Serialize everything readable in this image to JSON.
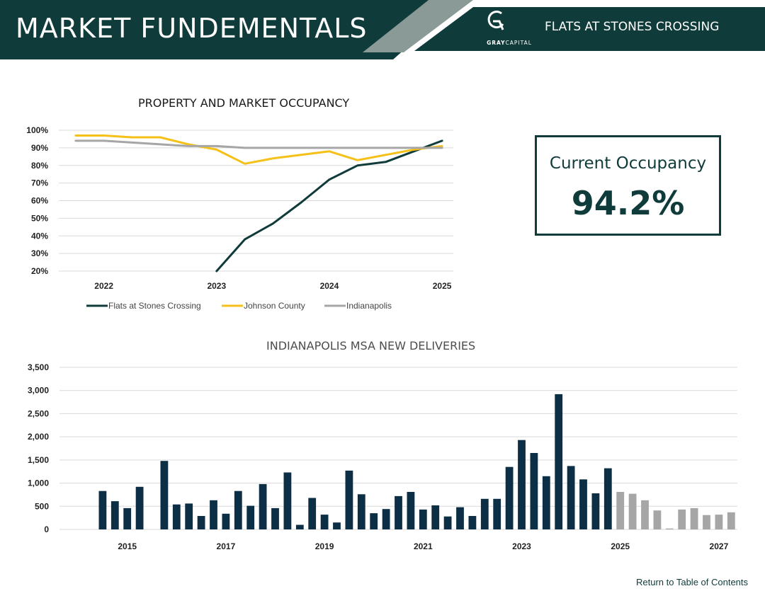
{
  "header": {
    "title": "MARKET FUNDEMENTALS",
    "logo_text_bold": "GRAY",
    "logo_text_light": "CAPITAL",
    "logo_icon": "gray-capital-logo-icon",
    "property_name": "FLATS AT STONES CROSSING"
  },
  "colors": {
    "brand_dark": "#0f3b3a",
    "accent_gray": "#8a9a97",
    "flats_line": "#0f3b3a",
    "johnson_line": "#f5c118",
    "indianapolis_line": "#a6a6a6",
    "delivered_bar": "#0d2f45",
    "projected_bar": "#a6a6a6"
  },
  "occupancy_card": {
    "label": "Current Occupancy",
    "value": "94.2%"
  },
  "footer": {
    "return_link": "Return to Table of Contents"
  },
  "chart_data": [
    {
      "type": "line",
      "title": "PROPERTY AND MARKET OCCUPANCY",
      "xlabel": "",
      "ylabel": "",
      "x_tick_labels": [
        "2022",
        "2023",
        "2024",
        "2025"
      ],
      "x_range": [
        2021.6,
        2025.1
      ],
      "y_tick_labels": [
        "100%",
        "90%",
        "80%",
        "70%",
        "60%",
        "50%",
        "40%",
        "30%",
        "20%"
      ],
      "ylim": [
        20,
        100
      ],
      "grid": true,
      "legend_position": "bottom",
      "series": [
        {
          "name": "Flats at Stones Crossing",
          "color": "#0f3b3a",
          "x": [
            2023.0,
            2023.25,
            2023.5,
            2023.75,
            2024.0,
            2024.25,
            2024.5,
            2024.75,
            2025.0
          ],
          "y": [
            20,
            38,
            47,
            59,
            72,
            80,
            82,
            88,
            94
          ]
        },
        {
          "name": "Johnson County",
          "color": "#f5c118",
          "x": [
            2021.75,
            2022.0,
            2022.25,
            2022.5,
            2022.75,
            2023.0,
            2023.25,
            2023.5,
            2023.75,
            2024.0,
            2024.25,
            2024.5,
            2024.75,
            2025.0
          ],
          "y": [
            97,
            97,
            96,
            96,
            92,
            89,
            81,
            84,
            86,
            88,
            83,
            86,
            89,
            91
          ]
        },
        {
          "name": "Indianapolis",
          "color": "#a6a6a6",
          "x": [
            2021.75,
            2022.0,
            2022.25,
            2022.5,
            2022.75,
            2023.0,
            2023.25,
            2023.5,
            2023.75,
            2024.0,
            2024.25,
            2024.5,
            2024.75,
            2025.0
          ],
          "y": [
            94,
            94,
            93,
            92,
            91,
            91,
            90,
            90,
            90,
            90,
            90,
            90,
            90,
            90
          ]
        }
      ]
    },
    {
      "type": "bar",
      "title": "INDIANAPOLIS MSA NEW DELIVERIES",
      "xlabel": "",
      "ylabel": "",
      "x_tick_labels": [
        "2015",
        "2017",
        "2019",
        "2021",
        "2023",
        "2025",
        "2027"
      ],
      "y_tick_labels": [
        "3,500",
        "3,000",
        "2,500",
        "2,000",
        "1,500",
        "1,000",
        "500",
        "0"
      ],
      "ylim": [
        0,
        3500
      ],
      "grid": true,
      "legend_position": "none",
      "bar_slots": 55,
      "bars": [
        {
          "v": 0,
          "s": "delivered"
        },
        {
          "v": 0,
          "s": "delivered"
        },
        {
          "v": 0,
          "s": "delivered"
        },
        {
          "v": 830,
          "s": "delivered"
        },
        {
          "v": 610,
          "s": "delivered"
        },
        {
          "v": 460,
          "s": "delivered"
        },
        {
          "v": 920,
          "s": "delivered"
        },
        {
          "v": 0,
          "s": "delivered"
        },
        {
          "v": 1480,
          "s": "delivered"
        },
        {
          "v": 540,
          "s": "delivered"
        },
        {
          "v": 560,
          "s": "delivered"
        },
        {
          "v": 290,
          "s": "delivered"
        },
        {
          "v": 630,
          "s": "delivered"
        },
        {
          "v": 340,
          "s": "delivered"
        },
        {
          "v": 830,
          "s": "delivered"
        },
        {
          "v": 510,
          "s": "delivered"
        },
        {
          "v": 980,
          "s": "delivered"
        },
        {
          "v": 460,
          "s": "delivered"
        },
        {
          "v": 1230,
          "s": "delivered"
        },
        {
          "v": 100,
          "s": "delivered"
        },
        {
          "v": 680,
          "s": "delivered"
        },
        {
          "v": 320,
          "s": "delivered"
        },
        {
          "v": 150,
          "s": "delivered"
        },
        {
          "v": 1270,
          "s": "delivered"
        },
        {
          "v": 760,
          "s": "delivered"
        },
        {
          "v": 350,
          "s": "delivered"
        },
        {
          "v": 440,
          "s": "delivered"
        },
        {
          "v": 720,
          "s": "delivered"
        },
        {
          "v": 810,
          "s": "delivered"
        },
        {
          "v": 430,
          "s": "delivered"
        },
        {
          "v": 520,
          "s": "delivered"
        },
        {
          "v": 280,
          "s": "delivered"
        },
        {
          "v": 480,
          "s": "delivered"
        },
        {
          "v": 290,
          "s": "delivered"
        },
        {
          "v": 660,
          "s": "delivered"
        },
        {
          "v": 660,
          "s": "delivered"
        },
        {
          "v": 1350,
          "s": "delivered"
        },
        {
          "v": 1930,
          "s": "delivered"
        },
        {
          "v": 1650,
          "s": "delivered"
        },
        {
          "v": 1150,
          "s": "delivered"
        },
        {
          "v": 2920,
          "s": "delivered"
        },
        {
          "v": 1370,
          "s": "delivered"
        },
        {
          "v": 1080,
          "s": "delivered"
        },
        {
          "v": 780,
          "s": "delivered"
        },
        {
          "v": 1320,
          "s": "delivered"
        },
        {
          "v": 810,
          "s": "projected"
        },
        {
          "v": 770,
          "s": "projected"
        },
        {
          "v": 630,
          "s": "projected"
        },
        {
          "v": 410,
          "s": "projected"
        },
        {
          "v": 20,
          "s": "projected"
        },
        {
          "v": 430,
          "s": "projected"
        },
        {
          "v": 460,
          "s": "projected"
        },
        {
          "v": 310,
          "s": "projected"
        },
        {
          "v": 320,
          "s": "projected"
        },
        {
          "v": 370,
          "s": "projected"
        }
      ]
    }
  ]
}
